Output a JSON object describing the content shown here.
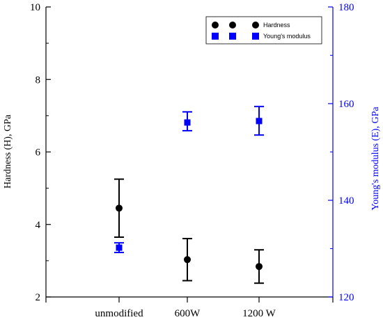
{
  "chart_data": {
    "type": "scatter",
    "categories": [
      "unmodified",
      "600W",
      "1200 W"
    ],
    "y_left": {
      "label": "Hardness (H), GPa",
      "range": [
        2,
        10
      ],
      "ticks": [
        2,
        4,
        6,
        8,
        10
      ],
      "tick_labels": [
        "2",
        "4",
        "6",
        "8",
        "10"
      ]
    },
    "y_right": {
      "label": "Young's modulus (E), GPa",
      "range": [
        120,
        180
      ],
      "ticks": [
        120,
        140,
        160,
        180
      ],
      "tick_labels": [
        "120",
        "140",
        "160",
        "180"
      ]
    },
    "series": [
      {
        "name": "Hardness",
        "axis": "left",
        "marker": "circle",
        "color": "#000000",
        "values": [
          4.45,
          3.03,
          2.84
        ],
        "err_low": [
          3.65,
          2.45,
          2.38
        ],
        "err_high": [
          5.25,
          3.61,
          3.3
        ]
      },
      {
        "name": "Young's modulus",
        "axis": "right",
        "marker": "square",
        "color": "#0000ff",
        "values": [
          130.2,
          156.1,
          156.4
        ],
        "err_low": [
          129.2,
          154.4,
          153.5
        ],
        "err_high": [
          131.2,
          158.3,
          159.4
        ]
      }
    ],
    "legend_position": "top-right",
    "grid": false
  }
}
